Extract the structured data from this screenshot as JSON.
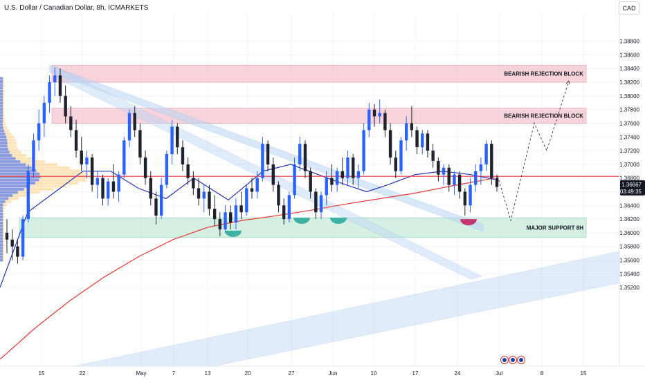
{
  "header": {
    "title": "U.S. Dollar / Canadian Dollar, 8h, ICMARKETS",
    "currency": "CAD"
  },
  "price_tag": {
    "price": "1.36667",
    "countdown": "03:49:35"
  },
  "colors": {
    "bull": "#2962ff",
    "bear": "#1e222d",
    "zone_bearish": "#f5c6cf",
    "zone_support": "#c8ecd9",
    "channel": "#bbd6f5",
    "ma_blue": "#2430b8",
    "ma_red": "#e53935",
    "horizontal_level": "#f23645"
  },
  "chart_data": {
    "type": "candlestick",
    "y_axis": {
      "range": [
        1.3405,
        1.392
      ],
      "ticks": [
        "1.38800",
        "1.38600",
        "1.38400",
        "1.38200",
        "1.38000",
        "1.37800",
        "1.37600",
        "1.37400",
        "1.37200",
        "1.37000",
        "1.36800",
        "1.36600",
        "1.36400",
        "1.36200",
        "1.36000",
        "1.35800",
        "1.35600",
        "1.35400",
        "1.35200"
      ],
      "tick_values": [
        1.388,
        1.386,
        1.384,
        1.382,
        1.38,
        1.378,
        1.376,
        1.374,
        1.372,
        1.37,
        1.368,
        1.366,
        1.364,
        1.362,
        1.36,
        1.358,
        1.356,
        1.354,
        1.352
      ]
    },
    "x_axis": {
      "ticks": [
        "15",
        "22",
        "May",
        "7",
        "13",
        "20",
        "27",
        "Jun",
        "10",
        "17",
        "24",
        "Jul",
        "8",
        "15"
      ]
    },
    "candles": [
      {
        "o": 1.36,
        "h": 1.362,
        "l": 1.357,
        "c": 1.359
      },
      {
        "o": 1.359,
        "h": 1.3605,
        "l": 1.356,
        "c": 1.358
      },
      {
        "o": 1.358,
        "h": 1.359,
        "l": 1.3555,
        "c": 1.3565
      },
      {
        "o": 1.3565,
        "h": 1.3625,
        "l": 1.356,
        "c": 1.362
      },
      {
        "o": 1.362,
        "h": 1.37,
        "l": 1.3615,
        "c": 1.369
      },
      {
        "o": 1.369,
        "h": 1.3745,
        "l": 1.368,
        "c": 1.3735
      },
      {
        "o": 1.3735,
        "h": 1.378,
        "l": 1.372,
        "c": 1.376
      },
      {
        "o": 1.376,
        "h": 1.38,
        "l": 1.374,
        "c": 1.379
      },
      {
        "o": 1.379,
        "h": 1.383,
        "l": 1.3775,
        "c": 1.382
      },
      {
        "o": 1.382,
        "h": 1.3842,
        "l": 1.38,
        "c": 1.383
      },
      {
        "o": 1.383,
        "h": 1.384,
        "l": 1.379,
        "c": 1.38
      },
      {
        "o": 1.38,
        "h": 1.3815,
        "l": 1.376,
        "c": 1.377
      },
      {
        "o": 1.377,
        "h": 1.3785,
        "l": 1.374,
        "c": 1.375
      },
      {
        "o": 1.375,
        "h": 1.3765,
        "l": 1.371,
        "c": 1.372
      },
      {
        "o": 1.372,
        "h": 1.374,
        "l": 1.369,
        "c": 1.37
      },
      {
        "o": 1.37,
        "h": 1.372,
        "l": 1.368,
        "c": 1.371
      },
      {
        "o": 1.371,
        "h": 1.3715,
        "l": 1.366,
        "c": 1.367
      },
      {
        "o": 1.367,
        "h": 1.369,
        "l": 1.365,
        "c": 1.368
      },
      {
        "o": 1.368,
        "h": 1.3685,
        "l": 1.364,
        "c": 1.365
      },
      {
        "o": 1.365,
        "h": 1.368,
        "l": 1.364,
        "c": 1.3675
      },
      {
        "o": 1.3675,
        "h": 1.37,
        "l": 1.365,
        "c": 1.366
      },
      {
        "o": 1.366,
        "h": 1.369,
        "l": 1.3645,
        "c": 1.3685
      },
      {
        "o": 1.3685,
        "h": 1.374,
        "l": 1.368,
        "c": 1.3735
      },
      {
        "o": 1.3735,
        "h": 1.378,
        "l": 1.3725,
        "c": 1.3775
      },
      {
        "o": 1.3775,
        "h": 1.3785,
        "l": 1.374,
        "c": 1.375
      },
      {
        "o": 1.375,
        "h": 1.376,
        "l": 1.37,
        "c": 1.371
      },
      {
        "o": 1.371,
        "h": 1.372,
        "l": 1.367,
        "c": 1.368
      },
      {
        "o": 1.368,
        "h": 1.369,
        "l": 1.364,
        "c": 1.365
      },
      {
        "o": 1.365,
        "h": 1.366,
        "l": 1.3612,
        "c": 1.3625
      },
      {
        "o": 1.3625,
        "h": 1.368,
        "l": 1.362,
        "c": 1.367
      },
      {
        "o": 1.367,
        "h": 1.372,
        "l": 1.3665,
        "c": 1.3715
      },
      {
        "o": 1.3715,
        "h": 1.3765,
        "l": 1.37,
        "c": 1.3755
      },
      {
        "o": 1.3755,
        "h": 1.376,
        "l": 1.3715,
        "c": 1.3725
      },
      {
        "o": 1.3725,
        "h": 1.3735,
        "l": 1.369,
        "c": 1.37
      },
      {
        "o": 1.37,
        "h": 1.371,
        "l": 1.367,
        "c": 1.368
      },
      {
        "o": 1.368,
        "h": 1.369,
        "l": 1.3655,
        "c": 1.3665
      },
      {
        "o": 1.3665,
        "h": 1.368,
        "l": 1.364,
        "c": 1.365
      },
      {
        "o": 1.365,
        "h": 1.367,
        "l": 1.363,
        "c": 1.366
      },
      {
        "o": 1.366,
        "h": 1.367,
        "l": 1.3625,
        "c": 1.3635
      },
      {
        "o": 1.3635,
        "h": 1.3655,
        "l": 1.361,
        "c": 1.362
      },
      {
        "o": 1.362,
        "h": 1.363,
        "l": 1.3595,
        "c": 1.3605
      },
      {
        "o": 1.3605,
        "h": 1.364,
        "l": 1.36,
        "c": 1.363
      },
      {
        "o": 1.363,
        "h": 1.364,
        "l": 1.3605,
        "c": 1.3615
      },
      {
        "o": 1.3615,
        "h": 1.365,
        "l": 1.3605,
        "c": 1.364
      },
      {
        "o": 1.364,
        "h": 1.366,
        "l": 1.362,
        "c": 1.363
      },
      {
        "o": 1.363,
        "h": 1.367,
        "l": 1.3625,
        "c": 1.3665
      },
      {
        "o": 1.3665,
        "h": 1.368,
        "l": 1.365,
        "c": 1.366
      },
      {
        "o": 1.366,
        "h": 1.369,
        "l": 1.365,
        "c": 1.368
      },
      {
        "o": 1.368,
        "h": 1.374,
        "l": 1.3675,
        "c": 1.373
      },
      {
        "o": 1.373,
        "h": 1.3735,
        "l": 1.369,
        "c": 1.37
      },
      {
        "o": 1.37,
        "h": 1.371,
        "l": 1.366,
        "c": 1.367
      },
      {
        "o": 1.367,
        "h": 1.3675,
        "l": 1.363,
        "c": 1.364
      },
      {
        "o": 1.364,
        "h": 1.365,
        "l": 1.3612,
        "c": 1.362
      },
      {
        "o": 1.362,
        "h": 1.366,
        "l": 1.3615,
        "c": 1.3655
      },
      {
        "o": 1.3655,
        "h": 1.371,
        "l": 1.365,
        "c": 1.37
      },
      {
        "o": 1.37,
        "h": 1.374,
        "l": 1.369,
        "c": 1.373
      },
      {
        "o": 1.373,
        "h": 1.3735,
        "l": 1.368,
        "c": 1.369
      },
      {
        "o": 1.369,
        "h": 1.3695,
        "l": 1.365,
        "c": 1.366
      },
      {
        "o": 1.366,
        "h": 1.3665,
        "l": 1.362,
        "c": 1.363
      },
      {
        "o": 1.363,
        "h": 1.366,
        "l": 1.362,
        "c": 1.3655
      },
      {
        "o": 1.3655,
        "h": 1.369,
        "l": 1.364,
        "c": 1.368
      },
      {
        "o": 1.368,
        "h": 1.37,
        "l": 1.366,
        "c": 1.367
      },
      {
        "o": 1.367,
        "h": 1.3695,
        "l": 1.366,
        "c": 1.369
      },
      {
        "o": 1.369,
        "h": 1.371,
        "l": 1.367,
        "c": 1.368
      },
      {
        "o": 1.368,
        "h": 1.372,
        "l": 1.367,
        "c": 1.371
      },
      {
        "o": 1.371,
        "h": 1.3715,
        "l": 1.367,
        "c": 1.368
      },
      {
        "o": 1.368,
        "h": 1.37,
        "l": 1.3665,
        "c": 1.369
      },
      {
        "o": 1.369,
        "h": 1.376,
        "l": 1.3685,
        "c": 1.375
      },
      {
        "o": 1.375,
        "h": 1.379,
        "l": 1.374,
        "c": 1.378
      },
      {
        "o": 1.378,
        "h": 1.3788,
        "l": 1.3755,
        "c": 1.377
      },
      {
        "o": 1.377,
        "h": 1.3795,
        "l": 1.376,
        "c": 1.3775
      },
      {
        "o": 1.3775,
        "h": 1.378,
        "l": 1.374,
        "c": 1.375
      },
      {
        "o": 1.375,
        "h": 1.376,
        "l": 1.37,
        "c": 1.371
      },
      {
        "o": 1.371,
        "h": 1.372,
        "l": 1.368,
        "c": 1.369
      },
      {
        "o": 1.369,
        "h": 1.374,
        "l": 1.3685,
        "c": 1.3735
      },
      {
        "o": 1.3735,
        "h": 1.377,
        "l": 1.372,
        "c": 1.376
      },
      {
        "o": 1.376,
        "h": 1.3785,
        "l": 1.374,
        "c": 1.375
      },
      {
        "o": 1.375,
        "h": 1.3755,
        "l": 1.3715,
        "c": 1.3725
      },
      {
        "o": 1.3725,
        "h": 1.375,
        "l": 1.3715,
        "c": 1.3745
      },
      {
        "o": 1.3745,
        "h": 1.375,
        "l": 1.371,
        "c": 1.372
      },
      {
        "o": 1.372,
        "h": 1.373,
        "l": 1.3695,
        "c": 1.3705
      },
      {
        "o": 1.3705,
        "h": 1.371,
        "l": 1.3675,
        "c": 1.3685
      },
      {
        "o": 1.3685,
        "h": 1.37,
        "l": 1.367,
        "c": 1.3695
      },
      {
        "o": 1.3695,
        "h": 1.37,
        "l": 1.366,
        "c": 1.367
      },
      {
        "o": 1.367,
        "h": 1.369,
        "l": 1.3655,
        "c": 1.3685
      },
      {
        "o": 1.3685,
        "h": 1.369,
        "l": 1.365,
        "c": 1.366
      },
      {
        "o": 1.366,
        "h": 1.3665,
        "l": 1.3625,
        "c": 1.364
      },
      {
        "o": 1.364,
        "h": 1.368,
        "l": 1.363,
        "c": 1.367
      },
      {
        "o": 1.367,
        "h": 1.37,
        "l": 1.366,
        "c": 1.369
      },
      {
        "o": 1.369,
        "h": 1.371,
        "l": 1.367,
        "c": 1.37
      },
      {
        "o": 1.37,
        "h": 1.3735,
        "l": 1.369,
        "c": 1.373
      },
      {
        "o": 1.373,
        "h": 1.3735,
        "l": 1.367,
        "c": 1.368
      },
      {
        "o": 1.368,
        "h": 1.3685,
        "l": 1.366,
        "c": 1.3667
      }
    ],
    "moving_averages": {
      "blue": [
        [
          0,
          1.352
        ],
        [
          40,
          1.363
        ],
        [
          80,
          1.366
        ],
        [
          120,
          1.369
        ],
        [
          160,
          1.369
        ],
        [
          200,
          1.3665
        ],
        [
          240,
          1.365
        ],
        [
          280,
          1.368
        ],
        [
          330,
          1.3648
        ],
        [
          380,
          1.369
        ],
        [
          420,
          1.37
        ],
        [
          460,
          1.3685
        ],
        [
          500,
          1.367
        ],
        [
          530,
          1.366
        ],
        [
          560,
          1.367
        ],
        [
          600,
          1.3685
        ],
        [
          640,
          1.369
        ],
        [
          680,
          1.3685
        ],
        [
          715,
          1.3678
        ]
      ],
      "red": [
        [
          0,
          1.3415
        ],
        [
          50,
          1.346
        ],
        [
          100,
          1.35
        ],
        [
          150,
          1.3535
        ],
        [
          200,
          1.3565
        ],
        [
          250,
          1.359
        ],
        [
          300,
          1.3608
        ],
        [
          350,
          1.3618
        ],
        [
          400,
          1.3625
        ],
        [
          450,
          1.3633
        ],
        [
          500,
          1.3642
        ],
        [
          550,
          1.365
        ],
        [
          600,
          1.3658
        ],
        [
          650,
          1.3668
        ],
        [
          715,
          1.368
        ]
      ]
    },
    "horizontal_level": 1.36825,
    "zones": [
      {
        "label": "BEARISH REJECTION BLOCK",
        "y0": 1.382,
        "y1": 1.3845
      },
      {
        "label": "BEARISH REJECTION BLOCK",
        "y0": 1.376,
        "y1": 1.3782
      },
      {
        "label": "MAJOR SUPPORT 8H",
        "y0": 1.3593,
        "y1": 1.3622
      }
    ],
    "projection_path": [
      1.3683,
      1.3618,
      1.376,
      1.372,
      1.3822
    ]
  }
}
